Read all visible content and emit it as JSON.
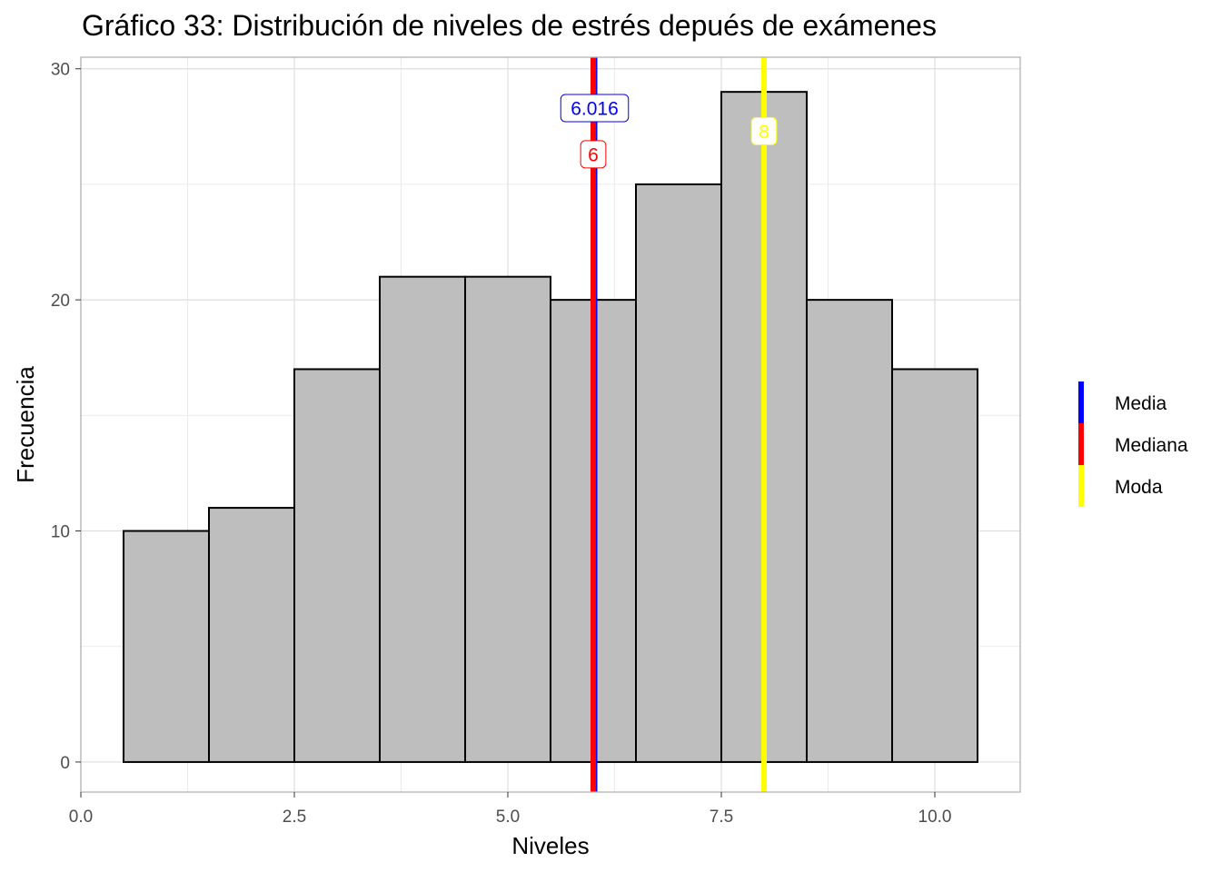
{
  "chart_data": {
    "type": "bar",
    "title": "Gráfico 33: Distribución de niveles de estrés depués de exámenes",
    "xlabel": "Niveles",
    "ylabel": "Frecuencia",
    "xlim": [
      0,
      11
    ],
    "ylim": [
      -1.3,
      30.5
    ],
    "x_ticks": [
      0,
      2.5,
      5,
      7.5,
      10
    ],
    "x_tick_labels": [
      "0.0",
      "2.5",
      "5.0",
      "7.5",
      "10.0"
    ],
    "y_ticks": [
      0,
      10,
      20,
      30
    ],
    "y_tick_labels": [
      "0",
      "10",
      "20",
      "30"
    ],
    "grid": true,
    "bins": [
      {
        "x": 1,
        "value": 10
      },
      {
        "x": 2,
        "value": 11
      },
      {
        "x": 3,
        "value": 17
      },
      {
        "x": 4,
        "value": 21
      },
      {
        "x": 5,
        "value": 21
      },
      {
        "x": 6,
        "value": 20
      },
      {
        "x": 7,
        "value": 25
      },
      {
        "x": 8,
        "value": 29
      },
      {
        "x": 9,
        "value": 20
      },
      {
        "x": 10,
        "value": 17
      }
    ],
    "bin_width": 1,
    "bar_fill": "#bebebe",
    "bar_stroke": "#000000",
    "reference_lines": [
      {
        "name": "Media",
        "x": 6.016,
        "label": "6.016",
        "label_y": 28.3,
        "color": "#0000ff"
      },
      {
        "name": "Mediana",
        "x": 6,
        "label": "6",
        "label_y": 26.3,
        "color": "#ff0000"
      },
      {
        "name": "Moda",
        "x": 8,
        "label": "8",
        "label_y": 27.3,
        "color": "#ffff00"
      }
    ],
    "legend": {
      "position": "right",
      "items": [
        {
          "label": "Media",
          "color": "#0000ff"
        },
        {
          "label": "Mediana",
          "color": "#ff0000"
        },
        {
          "label": "Moda",
          "color": "#ffff00"
        }
      ]
    }
  }
}
